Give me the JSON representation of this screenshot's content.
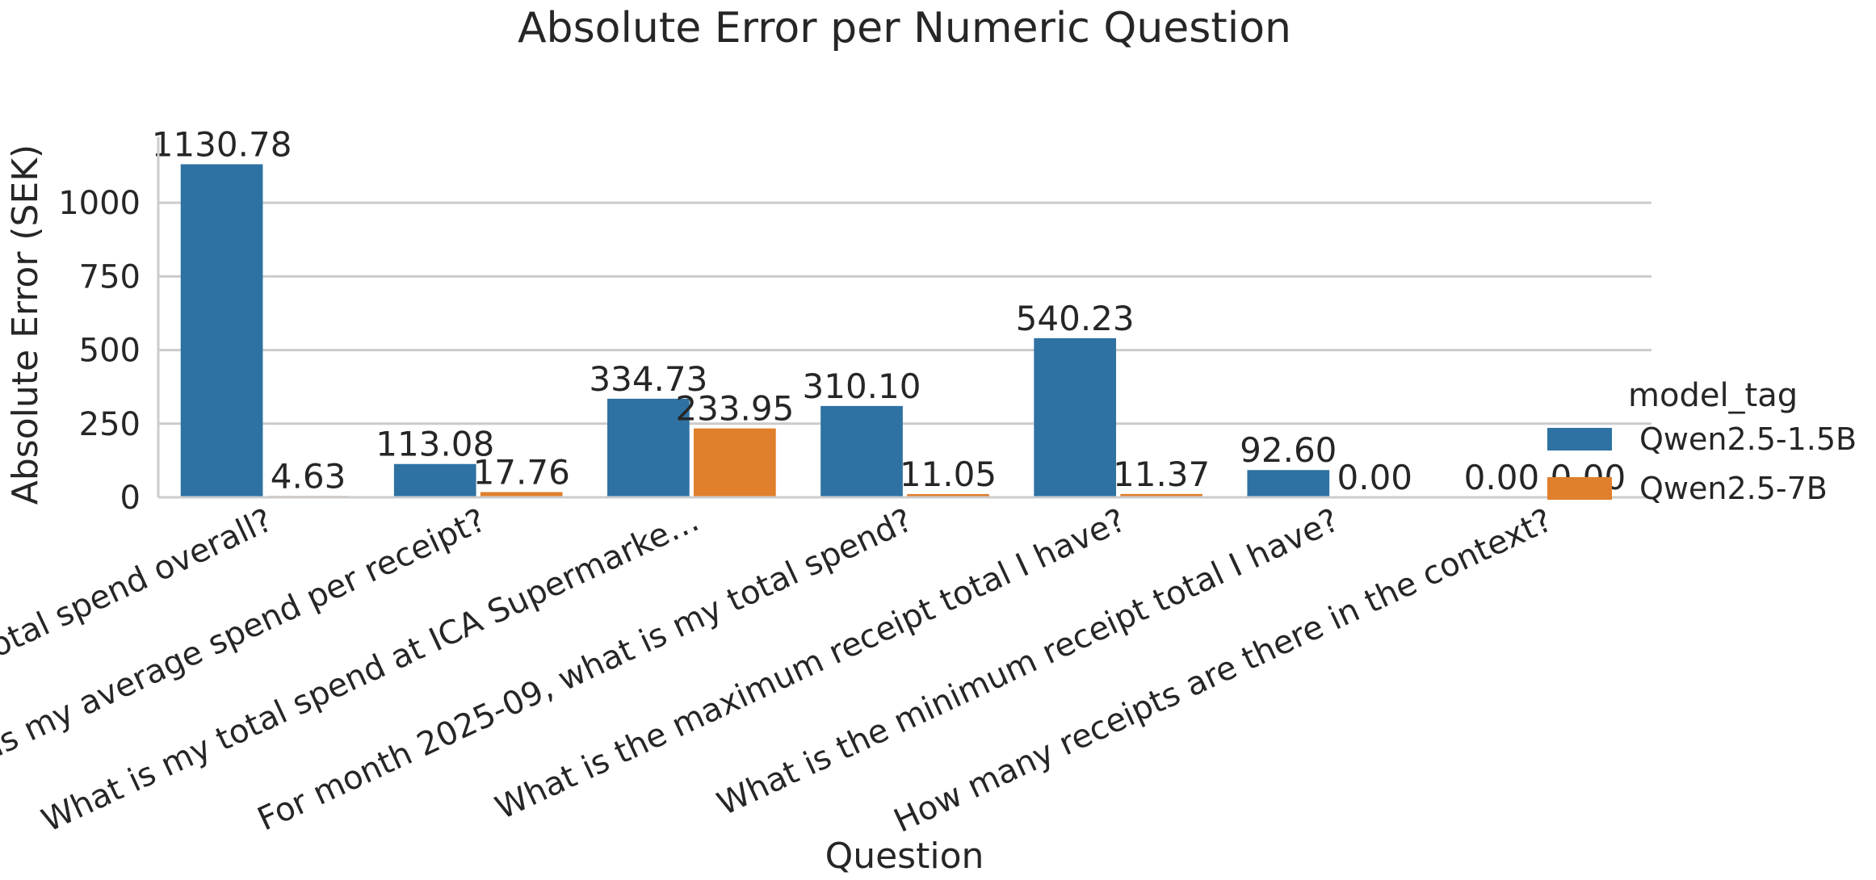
{
  "chart_data": {
    "type": "bar",
    "title": "Absolute Error per Numeric Question",
    "xlabel": "Question",
    "ylabel": "Absolute Error (SEK)",
    "categories": [
      "What is my total spend overall?",
      "What is my average spend per receipt?",
      "What is my total spend at ICA Supermarke…",
      "For month 2025-09, what is my total spend?",
      "What is the maximum receipt total I have?",
      "What is the minimum receipt total I have?",
      "How many receipts are there in the context?"
    ],
    "series": [
      {
        "name": "Qwen2.5-1.5B",
        "color": "#2e72a3",
        "values": [
          1130.78,
          113.08,
          334.73,
          310.1,
          540.23,
          92.6,
          0.0
        ],
        "labels": [
          "1130.78",
          "113.08",
          "334.73",
          "310.10",
          "540.23",
          "92.60",
          "0.00"
        ]
      },
      {
        "name": "Qwen2.5-7B",
        "color": "#e07f2c",
        "values": [
          4.63,
          17.76,
          233.95,
          11.05,
          11.37,
          0.0,
          0.0
        ],
        "labels": [
          "4.63",
          "17.76",
          "233.95",
          "11.05",
          "11.37",
          "0.00",
          "0.00"
        ]
      }
    ],
    "ylim": [
      0,
      1195
    ],
    "yticks": [
      0,
      250,
      500,
      750,
      1000
    ],
    "grid": true,
    "legend": {
      "title": "model_tag",
      "placement": "right"
    }
  }
}
